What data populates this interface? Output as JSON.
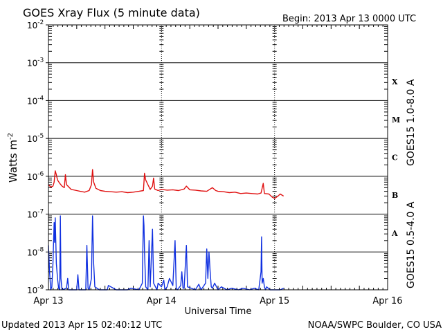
{
  "header": {
    "title": "GOES Xray Flux (5 minute data)",
    "begin_label": "Begin:  2013 Apr 13 0000 UTC"
  },
  "footer": {
    "updated": "Updated 2013 Apr 15 02:40:12 UTC",
    "credit": "NOAA/SWPC Boulder, CO USA"
  },
  "colors": {
    "long": "#e01010",
    "short": "#1030e0"
  },
  "chart_data": {
    "type": "line",
    "title": "GOES Xray Flux (5 minute data)",
    "xlabel": "Universal Time",
    "ylabel": "Watts m",
    "ylabel_sup": "-2",
    "yscale": "log",
    "ylim": [
      1e-09,
      0.01
    ],
    "xlim": [
      0,
      3
    ],
    "x_unit": "days since 2013 Apr 13 0000 UTC",
    "grid": true,
    "x_ticks": [
      {
        "x": 0,
        "label": "Apr 13"
      },
      {
        "x": 1,
        "label": "Apr 14"
      },
      {
        "x": 2,
        "label": "Apr 15"
      },
      {
        "x": 3,
        "label": "Apr 16"
      }
    ],
    "y_ticks": [
      {
        "exp": -9,
        "base": "10",
        "sup": "-9"
      },
      {
        "exp": -8,
        "base": "10",
        "sup": "-8"
      },
      {
        "exp": -7,
        "base": "10",
        "sup": "-7"
      },
      {
        "exp": -6,
        "base": "10",
        "sup": "-6"
      },
      {
        "exp": -5,
        "base": "10",
        "sup": "-5"
      },
      {
        "exp": -4,
        "base": "10",
        "sup": "-4"
      },
      {
        "exp": -3,
        "base": "10",
        "sup": "-3"
      },
      {
        "exp": -2,
        "base": "10",
        "sup": "-2"
      }
    ],
    "flare_classes": [
      {
        "label": "A",
        "exp": -7.5
      },
      {
        "label": "B",
        "exp": -6.5
      },
      {
        "label": "C",
        "exp": -5.5
      },
      {
        "label": "M",
        "exp": -4.5
      },
      {
        "label": "X",
        "exp": -3.5
      }
    ],
    "series": [
      {
        "name": "GOES15 1.0-8.0 A",
        "color": "#e01010",
        "points": [
          [
            0.0,
            6e-07
          ],
          [
            0.02,
            5.2e-07
          ],
          [
            0.04,
            5.5e-07
          ],
          [
            0.05,
            7e-07
          ],
          [
            0.06,
            1.4e-06
          ],
          [
            0.07,
            1.1e-06
          ],
          [
            0.08,
            8e-07
          ],
          [
            0.1,
            6.5e-07
          ],
          [
            0.12,
            5.5e-07
          ],
          [
            0.14,
            5e-07
          ],
          [
            0.15,
            1.1e-06
          ],
          [
            0.16,
            6e-07
          ],
          [
            0.2,
            4.5e-07
          ],
          [
            0.25,
            4.2e-07
          ],
          [
            0.28,
            4e-07
          ],
          [
            0.32,
            3.8e-07
          ],
          [
            0.36,
            4.2e-07
          ],
          [
            0.38,
            6e-07
          ],
          [
            0.39,
            1.5e-06
          ],
          [
            0.4,
            7e-07
          ],
          [
            0.42,
            4.8e-07
          ],
          [
            0.46,
            4.2e-07
          ],
          [
            0.5,
            4e-07
          ],
          [
            0.55,
            3.9e-07
          ],
          [
            0.6,
            3.8e-07
          ],
          [
            0.65,
            3.9e-07
          ],
          [
            0.7,
            3.7e-07
          ],
          [
            0.75,
            3.8e-07
          ],
          [
            0.8,
            4e-07
          ],
          [
            0.84,
            4.2e-07
          ],
          [
            0.85,
            1.2e-06
          ],
          [
            0.86,
            8e-07
          ],
          [
            0.88,
            6e-07
          ],
          [
            0.9,
            4.5e-07
          ],
          [
            0.92,
            5.5e-07
          ],
          [
            0.93,
            9e-07
          ],
          [
            0.94,
            4.6e-07
          ],
          [
            0.97,
            4.2e-07
          ],
          [
            1.0,
            4.5e-07
          ],
          [
            1.05,
            4.3e-07
          ],
          [
            1.1,
            4.4e-07
          ],
          [
            1.15,
            4.2e-07
          ],
          [
            1.2,
            4.6e-07
          ],
          [
            1.22,
            5.5e-07
          ],
          [
            1.25,
            4.4e-07
          ],
          [
            1.3,
            4.3e-07
          ],
          [
            1.35,
            4.1e-07
          ],
          [
            1.4,
            4e-07
          ],
          [
            1.45,
            5e-07
          ],
          [
            1.48,
            4.2e-07
          ],
          [
            1.5,
            4e-07
          ],
          [
            1.55,
            3.9e-07
          ],
          [
            1.6,
            3.7e-07
          ],
          [
            1.65,
            3.8e-07
          ],
          [
            1.7,
            3.5e-07
          ],
          [
            1.75,
            3.6e-07
          ],
          [
            1.8,
            3.5e-07
          ],
          [
            1.85,
            3.4e-07
          ],
          [
            1.88,
            3.6e-07
          ],
          [
            1.9,
            6.5e-07
          ],
          [
            1.91,
            3.5e-07
          ],
          [
            1.95,
            3.4e-07
          ],
          [
            1.98,
            2.8e-07
          ],
          [
            2.0,
            2.6e-07
          ],
          [
            2.03,
            3e-07
          ],
          [
            2.05,
            3.4e-07
          ],
          [
            2.08,
            3e-07
          ]
        ]
      },
      {
        "name": "GOES15 0.5-4.0 A",
        "color": "#1030e0",
        "points": [
          [
            0.0,
            1.5e-08
          ],
          [
            0.01,
            3e-09
          ],
          [
            0.02,
            1e-09
          ],
          [
            0.03,
            1.2e-09
          ],
          [
            0.04,
            5e-09
          ],
          [
            0.05,
            6e-08
          ],
          [
            0.055,
            1.8e-08
          ],
          [
            0.06,
            8e-08
          ],
          [
            0.065,
            2e-08
          ],
          [
            0.07,
            5e-09
          ],
          [
            0.08,
            2e-09
          ],
          [
            0.09,
            1.1e-09
          ],
          [
            0.1,
            1e-09
          ],
          [
            0.105,
            9e-08
          ],
          [
            0.11,
            2e-09
          ],
          [
            0.12,
            1e-09
          ],
          [
            0.16,
            1.1e-09
          ],
          [
            0.17,
            2e-09
          ],
          [
            0.18,
            1e-09
          ],
          [
            0.25,
            1e-09
          ],
          [
            0.26,
            2.5e-09
          ],
          [
            0.27,
            1e-09
          ],
          [
            0.33,
            1e-09
          ],
          [
            0.34,
            1.5e-08
          ],
          [
            0.35,
            1.1e-09
          ],
          [
            0.36,
            1e-09
          ],
          [
            0.38,
            2e-09
          ],
          [
            0.39,
            9e-08
          ],
          [
            0.4,
            5e-09
          ],
          [
            0.41,
            1.2e-09
          ],
          [
            0.45,
            1e-09
          ],
          [
            0.52,
            1e-09
          ],
          [
            0.53,
            1.3e-09
          ],
          [
            0.6,
            1e-09
          ],
          [
            0.7,
            1e-09
          ],
          [
            0.73,
            1.1e-09
          ],
          [
            0.8,
            1e-09
          ],
          [
            0.83,
            1.5e-09
          ],
          [
            0.84,
            9e-08
          ],
          [
            0.845,
            5e-08
          ],
          [
            0.85,
            1e-08
          ],
          [
            0.86,
            1.2e-09
          ],
          [
            0.88,
            1e-09
          ],
          [
            0.89,
            2e-08
          ],
          [
            0.9,
            1.2e-09
          ],
          [
            0.92,
            4e-08
          ],
          [
            0.93,
            1.5e-09
          ],
          [
            0.96,
            1e-09
          ],
          [
            0.97,
            1.5e-09
          ],
          [
            1.0,
            1.2e-09
          ],
          [
            1.02,
            1.8e-09
          ],
          [
            1.03,
            1e-09
          ],
          [
            1.05,
            1.2e-09
          ],
          [
            1.07,
            2e-09
          ],
          [
            1.1,
            1.3e-09
          ],
          [
            1.12,
            2e-08
          ],
          [
            1.13,
            1.1e-09
          ],
          [
            1.14,
            1e-09
          ],
          [
            1.17,
            1.3e-09
          ],
          [
            1.18,
            3e-09
          ],
          [
            1.19,
            1.1e-09
          ],
          [
            1.2,
            1.1e-09
          ],
          [
            1.21,
            4e-09
          ],
          [
            1.22,
            1.5e-08
          ],
          [
            1.23,
            1.2e-09
          ],
          [
            1.3,
            1e-09
          ],
          [
            1.33,
            1.4e-09
          ],
          [
            1.35,
            1e-09
          ],
          [
            1.39,
            1.5e-09
          ],
          [
            1.4,
            1.2e-08
          ],
          [
            1.41,
            2e-09
          ],
          [
            1.42,
            1e-08
          ],
          [
            1.43,
            3e-09
          ],
          [
            1.44,
            1.2e-09
          ],
          [
            1.45,
            1.1e-09
          ],
          [
            1.47,
            1.5e-09
          ],
          [
            1.5,
            1e-09
          ],
          [
            1.53,
            1.2e-09
          ],
          [
            1.58,
            1e-09
          ],
          [
            1.62,
            1.1e-09
          ],
          [
            1.68,
            1e-09
          ],
          [
            1.72,
            1.1e-09
          ],
          [
            1.78,
            1e-09
          ],
          [
            1.82,
            1.1e-09
          ],
          [
            1.86,
            1e-09
          ],
          [
            1.88,
            3e-09
          ],
          [
            1.885,
            2.5e-08
          ],
          [
            1.89,
            1.5e-09
          ],
          [
            1.9,
            2e-09
          ],
          [
            1.91,
            1.2e-09
          ],
          [
            1.92,
            1e-09
          ],
          [
            1.93,
            1.2e-09
          ],
          [
            1.96,
            1e-09
          ],
          [
            2.0,
            1e-09
          ],
          [
            2.05,
            1e-09
          ],
          [
            2.08,
            1.1e-09
          ]
        ]
      }
    ],
    "legend": [
      {
        "label": "GOES15 1.0-8.0 A",
        "color": "#e01010"
      },
      {
        "label": "GOES15 0.5-4.0 A",
        "color": "#1030e0"
      }
    ]
  }
}
